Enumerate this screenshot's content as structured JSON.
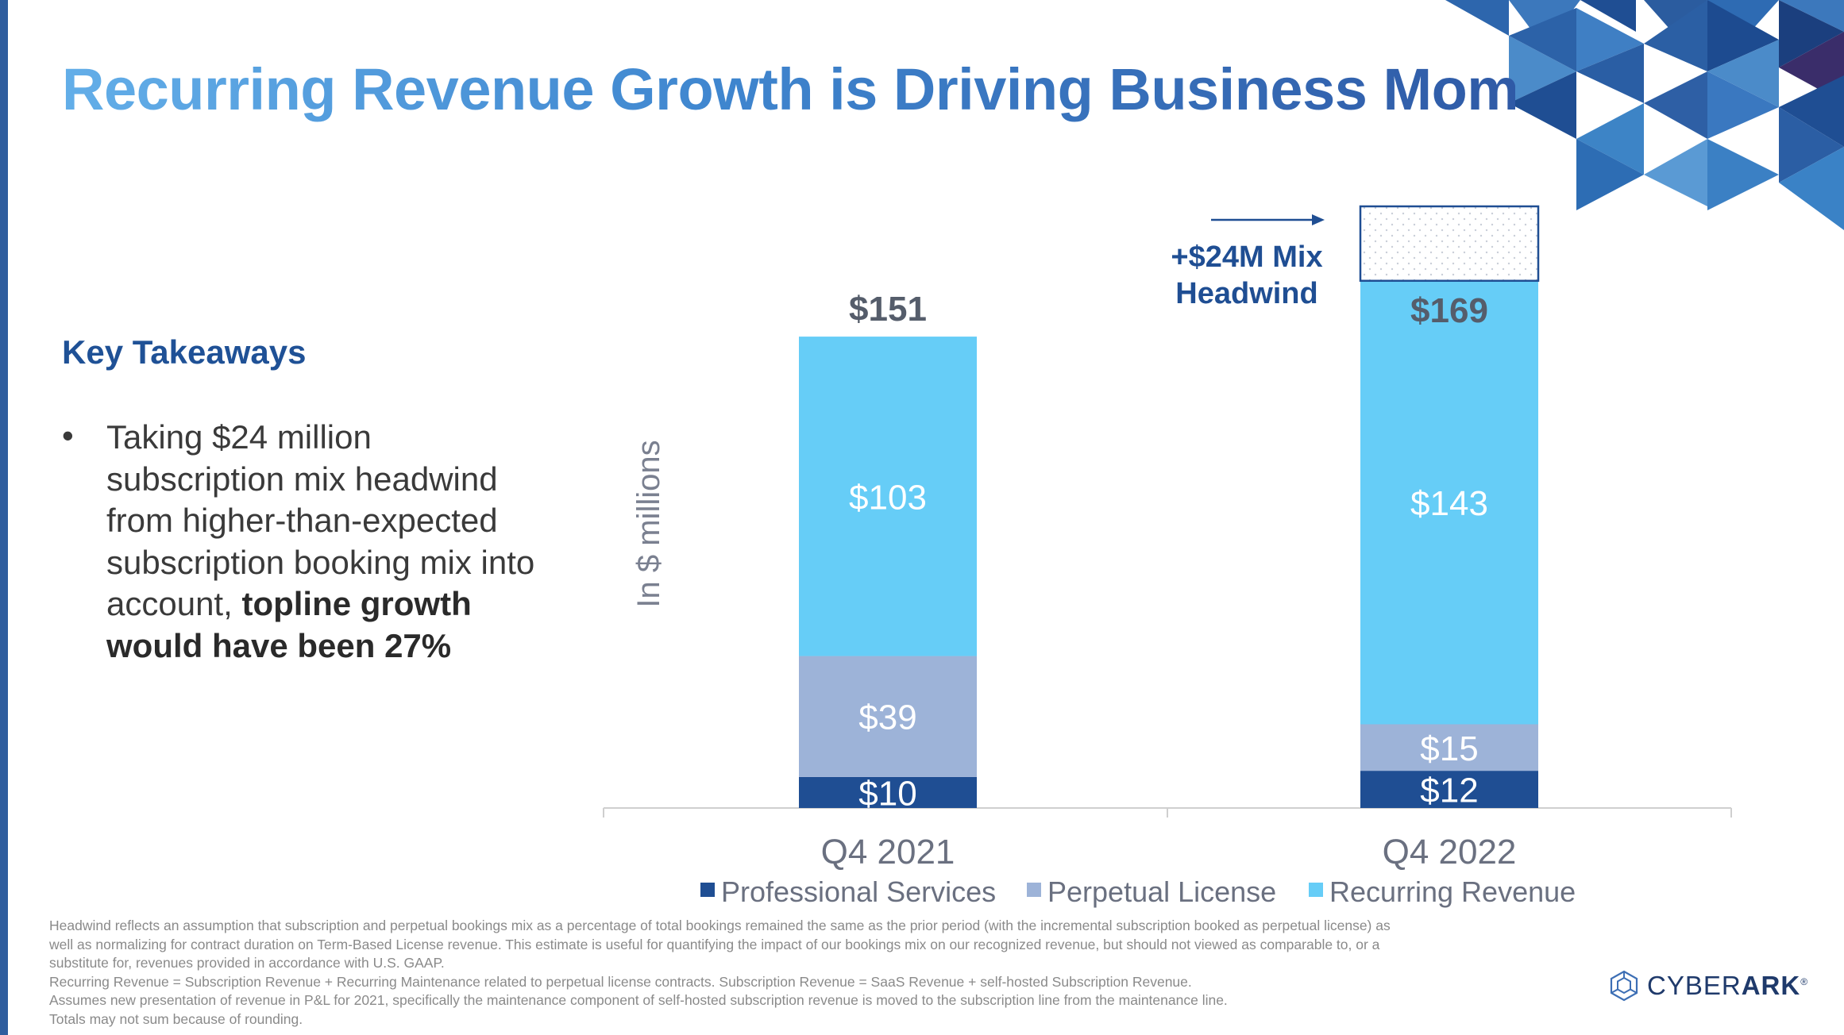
{
  "page": {
    "title": "Recurring Revenue Growth is Driving Business Momentum"
  },
  "takeaways": {
    "heading": "Key Takeaways",
    "bullet_marker": "•",
    "bullet_text_plain": "Taking $24 million subscription mix headwind from higher-than-expected subscription booking mix into account,",
    "bullet_text_bold": "topline growth would have been 27%"
  },
  "colors": {
    "professional_services": "#1f4e93",
    "perpetual_license": "#9db3d8",
    "recurring_revenue": "#66cdf7",
    "headwind_border": "#1f4e93",
    "title_start": "#63aee8",
    "title_end": "#2f5aa6",
    "label_dark": "#555d6b"
  },
  "chart_data": {
    "type": "bar",
    "stacked": true,
    "ylabel": "In $ millions",
    "xlabel": "",
    "ylim": [
      0,
      200
    ],
    "categories": [
      "Q4 2021",
      "Q4 2022"
    ],
    "series": [
      {
        "name": "Professional Services",
        "values": [
          10,
          12
        ],
        "labels": [
          "$10",
          "$12"
        ],
        "color": "#1f4e93"
      },
      {
        "name": "Perpetual License",
        "values": [
          39,
          15
        ],
        "labels": [
          "$39",
          "$15"
        ],
        "color": "#9db3d8"
      },
      {
        "name": "Recurring Revenue",
        "values": [
          103,
          143
        ],
        "labels": [
          "$103",
          "$143"
        ],
        "color": "#66cdf7"
      }
    ],
    "totals": [
      151,
      169
    ],
    "total_labels": [
      "$151",
      "$169"
    ],
    "headwind": {
      "category": "Q4 2022",
      "value": 24,
      "label_line1": "+$24M Mix",
      "label_line2": "Headwind"
    },
    "legend_position": "bottom",
    "grid": false
  },
  "footnotes": [
    "Headwind reflects an assumption that subscription and perpetual bookings mix as a percentage of total bookings remained the same as the prior period (with the incremental subscription booked as perpetual license) as",
    "well as normalizing for contract duration on Term-Based License revenue. This estimate is useful for quantifying the impact of our bookings mix on our recognized revenue, but should not viewed as comparable to, or a",
    "substitute for, revenues provided in accordance with U.S. GAAP.",
    "Recurring Revenue = Subscription Revenue + Recurring Maintenance related to perpetual license contracts. Subscription Revenue = SaaS Revenue + self-hosted Subscription Revenue.",
    "Assumes new presentation of revenue in P&L for 2021, specifically the maintenance component of self-hosted subscription revenue is moved to the subscription line from the maintenance line.",
    "Totals may not sum because of rounding."
  ],
  "logo": {
    "text_light": "CYBER",
    "text_bold": "ARK",
    "mark": "®"
  }
}
